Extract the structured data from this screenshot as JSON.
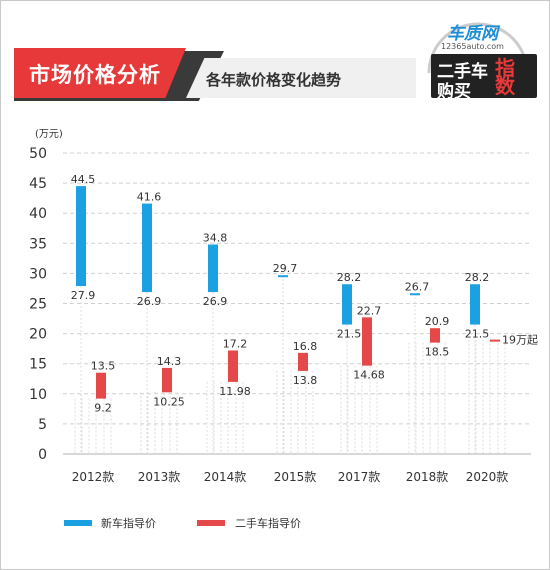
{
  "header": {
    "title": "市场价格分析",
    "subtitle": "各年款价格变化趋势",
    "logo_brand": "车质网",
    "logo_url": "12365auto.com",
    "logo_line1": "二手车",
    "logo_line2": "购买",
    "logo_line3": "指数"
  },
  "colors": {
    "new": "#1ba1e2",
    "used": "#e54848"
  },
  "chart_data": {
    "type": "bar",
    "ylabel": "(万元)",
    "ylim": [
      0,
      50
    ],
    "yticks": [
      0,
      5,
      10,
      15,
      20,
      25,
      30,
      35,
      40,
      45,
      50
    ],
    "categories": [
      "2012款",
      "2013款",
      "2014款",
      "2015款",
      "2017款",
      "2018款",
      "2020款"
    ],
    "grid": true,
    "legend_position": "bottom-left",
    "series": [
      {
        "name": "新车指导价",
        "ranges": [
          [
            27.9,
            44.5
          ],
          [
            26.9,
            41.6
          ],
          [
            26.9,
            34.8
          ],
          [
            29.7,
            29.7
          ],
          [
            21.5,
            28.2
          ],
          [
            26.7,
            26.7
          ],
          [
            21.5,
            28.2
          ]
        ],
        "labels_high": [
          "44.5",
          "41.6",
          "34.8",
          "29.7",
          "28.2",
          "26.7",
          "28.2"
        ],
        "labels_low": [
          "27.9",
          "26.9",
          "26.9",
          "",
          "21.5",
          "",
          "21.5"
        ]
      },
      {
        "name": "二手车指导价",
        "ranges": [
          [
            9.2,
            13.5
          ],
          [
            10.25,
            14.3
          ],
          [
            11.98,
            17.2
          ],
          [
            13.8,
            16.8
          ],
          [
            14.68,
            22.7
          ],
          [
            18.5,
            20.9
          ],
          [
            19,
            19
          ]
        ],
        "labels_high": [
          "13.5",
          "14.3",
          "17.2",
          "16.8",
          "22.7",
          "20.9",
          "19万起"
        ],
        "labels_low": [
          "9.2",
          "10.25",
          "11.98",
          "13.8",
          "14.68",
          "18.5",
          ""
        ]
      }
    ]
  }
}
